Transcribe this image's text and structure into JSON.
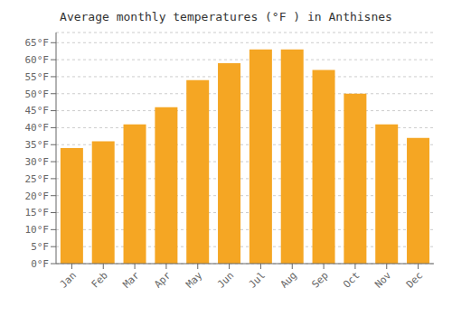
{
  "chart_data": {
    "type": "bar",
    "title": "Average monthly temperatures (°F ) in Anthisnes",
    "categories": [
      "Jan",
      "Feb",
      "Mar",
      "Apr",
      "May",
      "Jun",
      "Jul",
      "Aug",
      "Sep",
      "Oct",
      "Nov",
      "Dec"
    ],
    "values": [
      34,
      36,
      41,
      46,
      54,
      59,
      63,
      63,
      57,
      50,
      41,
      37
    ],
    "color": "#F5A623",
    "ylim": [
      0,
      68
    ],
    "yticks": [
      {
        "value": 0,
        "label": "0°F"
      },
      {
        "value": 5,
        "label": "5°F"
      },
      {
        "value": 10,
        "label": "10°F"
      },
      {
        "value": 15,
        "label": "15°F"
      },
      {
        "value": 20,
        "label": "20°F"
      },
      {
        "value": 25,
        "label": "25°F"
      },
      {
        "value": 30,
        "label": "30°F"
      },
      {
        "value": 35,
        "label": "35°F"
      },
      {
        "value": 40,
        "label": "40°F"
      },
      {
        "value": 45,
        "label": "45°F"
      },
      {
        "value": 50,
        "label": "50°F"
      },
      {
        "value": 55,
        "label": "55°F"
      },
      {
        "value": 60,
        "label": "60°F"
      },
      {
        "value": 65,
        "label": "65°F"
      }
    ],
    "grid": true
  }
}
